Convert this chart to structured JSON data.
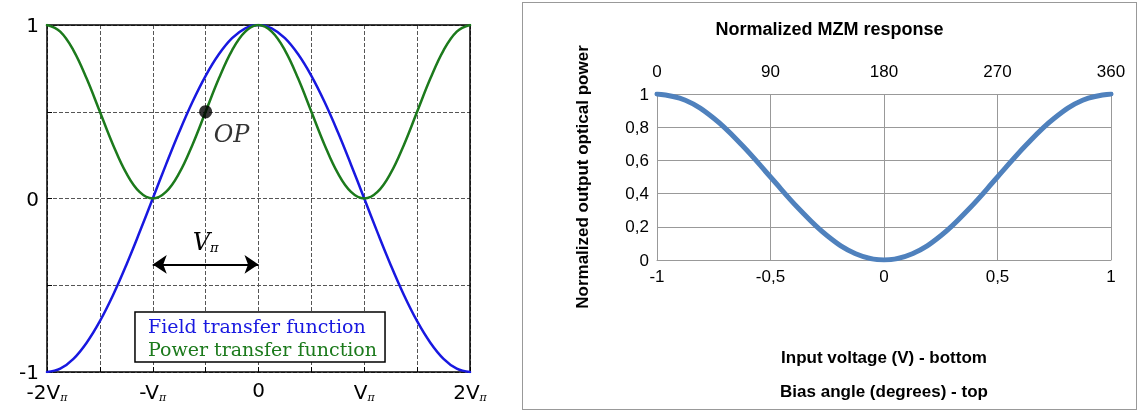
{
  "chart_data": [
    {
      "type": "line",
      "x": [
        -2,
        -1.875,
        -1.75,
        -1.625,
        -1.5,
        -1.375,
        -1.25,
        -1.125,
        -1,
        -0.875,
        -0.75,
        -0.625,
        -0.5,
        -0.375,
        -0.25,
        -0.125,
        0,
        0.125,
        0.25,
        0.375,
        0.5,
        0.625,
        0.75,
        0.875,
        1,
        1.125,
        1.25,
        1.375,
        1.5,
        1.625,
        1.75,
        1.875,
        2
      ],
      "series": [
        {
          "name": "Field transfer function",
          "color": "#1818e0",
          "values": [
            -1,
            -0.981,
            -0.924,
            -0.831,
            -0.707,
            -0.556,
            -0.383,
            -0.195,
            0,
            0.195,
            0.383,
            0.556,
            0.707,
            0.831,
            0.924,
            0.981,
            1,
            0.981,
            0.924,
            0.831,
            0.707,
            0.556,
            0.383,
            0.195,
            0,
            -0.195,
            -0.383,
            -0.556,
            -0.707,
            -0.831,
            -0.924,
            -0.981,
            -1
          ]
        },
        {
          "name": "Power transfer function",
          "color": "#1c7a1c",
          "values": [
            1,
            0.962,
            0.854,
            0.691,
            0.5,
            0.309,
            0.146,
            0.038,
            0,
            0.038,
            0.146,
            0.309,
            0.5,
            0.691,
            0.854,
            0.962,
            1,
            0.962,
            0.854,
            0.691,
            0.5,
            0.309,
            0.146,
            0.038,
            0,
            0.038,
            0.146,
            0.309,
            0.5,
            0.691,
            0.854,
            0.962,
            1
          ]
        },
        {
          "type": "scatter",
          "color": "#000000",
          "marker": "circle",
          "x": [
            -0.5
          ],
          "values": [
            0.5
          ]
        }
      ],
      "xlim": [
        -2,
        2
      ],
      "xticks": [
        {
          "value": -2,
          "label": "-2V$_{π}$"
        },
        {
          "value": -1.5,
          "label": null
        },
        {
          "value": -1,
          "label": "-V$_{π}$"
        },
        {
          "value": -0.5,
          "label": null
        },
        0,
        {
          "value": 0.5,
          "label": null
        },
        {
          "value": 1,
          "label": "V$_{π}$"
        },
        {
          "value": 1.5,
          "label": null
        },
        {
          "value": 2,
          "label": "2V$_{π}$"
        }
      ],
      "ylim": [
        -1,
        1
      ],
      "yticks": [
        -1,
        {
          "value": -0.5,
          "label": null
        },
        0,
        {
          "value": 0.5,
          "label": null
        },
        1
      ],
      "annotations": [
        {
          "text": "OP",
          "x": -0.5,
          "y": 0.5
        },
        "V$_{π}$"
      ],
      "grid": true,
      "legend": "bottom",
      "marker": "none",
      "line_style": "solid"
    },
    {
      "type": "line",
      "title": "Normalized MZM response",
      "x": [
        -1,
        -0.875,
        -0.75,
        -0.625,
        -0.5,
        -0.375,
        -0.25,
        -0.125,
        0,
        0.125,
        0.25,
        0.375,
        0.5,
        0.625,
        0.75,
        0.875,
        1
      ],
      "series": [
        {
          "color": "#4f81bd",
          "values": [
            1,
            0.962,
            0.854,
            0.691,
            0.5,
            0.309,
            0.146,
            0.038,
            0,
            0.038,
            0.146,
            0.309,
            0.5,
            0.691,
            0.854,
            0.962,
            1
          ]
        }
      ],
      "xlabel": "Input voltage (V) - bottom\nBias angle (degrees) - top",
      "ylabel": "Normalized output optical power",
      "xlim": [
        -1,
        1
      ],
      "xticks": [
        -1,
        {
          "value": -0.5,
          "label": "-0,5"
        },
        0,
        {
          "value": 0.5,
          "label": "0,5"
        },
        1
      ],
      "x2lim": [
        0,
        360
      ],
      "x2ticks": [
        0,
        90,
        180,
        270,
        360
      ],
      "ylim": [
        0,
        1
      ],
      "yticks": [
        0,
        {
          "value": 0.2,
          "label": "0,2"
        },
        {
          "value": 0.4,
          "label": "0,4"
        },
        {
          "value": 0.6,
          "label": "0,6"
        },
        {
          "value": 0.8,
          "label": "0,8"
        },
        1
      ],
      "grid": true,
      "legend": false,
      "marker": "none",
      "line_style": "solid"
    }
  ]
}
